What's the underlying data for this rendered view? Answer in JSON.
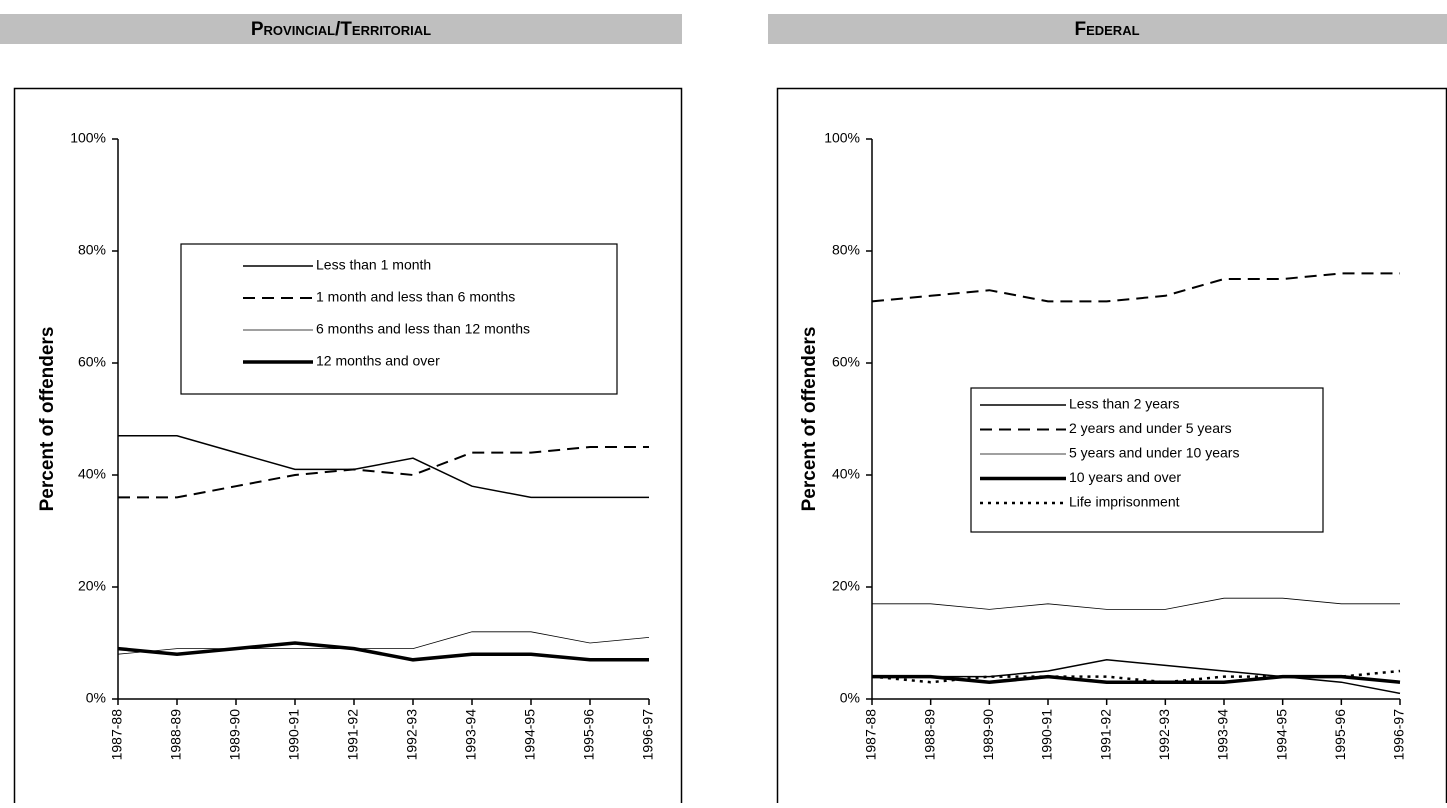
{
  "chart_data": [
    {
      "type": "line",
      "title": "Provincial/Territorial",
      "y_label": "Percent of offenders",
      "categories": [
        "1987-88",
        "1988-89",
        "1989-90",
        "1990-91",
        "1991-92",
        "1992-93",
        "1993-94",
        "1994-95",
        "1995-96",
        "1996-97"
      ],
      "ylim": [
        0,
        100
      ],
      "yticks": [
        {
          "value": 0,
          "label": "0%"
        },
        {
          "value": 20,
          "label": "20%"
        },
        {
          "value": 40,
          "label": "40%"
        },
        {
          "value": 60,
          "label": "60%"
        },
        {
          "value": 80,
          "label": "80%"
        },
        {
          "value": 100,
          "label": "100%"
        }
      ],
      "series": [
        {
          "name": "Less than 1 month",
          "color": "#000000",
          "style": "solid",
          "width": 1.5,
          "values": [
            47,
            47,
            44,
            41,
            41,
            43,
            38,
            36,
            36,
            36
          ]
        },
        {
          "name": "1 month and less than 6 months",
          "color": "#000000",
          "style": "dashed",
          "width": 2,
          "values": [
            36,
            36,
            38,
            40,
            41,
            40,
            44,
            44,
            45,
            45
          ]
        },
        {
          "name": "6 months and less than 12 months",
          "color": "#000000",
          "style": "solid",
          "width": 0.8,
          "values": [
            8,
            9,
            9,
            9,
            9,
            9,
            12,
            12,
            10,
            11
          ]
        },
        {
          "name": "12 months and over",
          "color": "#000000",
          "style": "solid",
          "width": 3.5,
          "values": [
            9,
            8,
            9,
            10,
            9,
            7,
            8,
            8,
            7,
            7
          ]
        }
      ]
    },
    {
      "type": "line",
      "title": "Federal",
      "y_label": "Percent of offenders",
      "categories": [
        "1987-88",
        "1988-89",
        "1989-90",
        "1990-91",
        "1991-92",
        "1992-93",
        "1993-94",
        "1994-95",
        "1995-96",
        "1996-97"
      ],
      "ylim": [
        0,
        100
      ],
      "yticks": [
        {
          "value": 0,
          "label": "0%"
        },
        {
          "value": 20,
          "label": "20%"
        },
        {
          "value": 40,
          "label": "40%"
        },
        {
          "value": 60,
          "label": "60%"
        },
        {
          "value": 80,
          "label": "80%"
        },
        {
          "value": 100,
          "label": "100%"
        }
      ],
      "series": [
        {
          "name": "Less than 2 years",
          "color": "#000000",
          "style": "solid",
          "width": 1.5,
          "values": [
            4,
            4,
            4,
            5,
            7,
            6,
            5,
            4,
            3,
            1
          ]
        },
        {
          "name": "2 years and under 5 years",
          "color": "#000000",
          "style": "dashed",
          "width": 2,
          "values": [
            71,
            72,
            73,
            71,
            71,
            72,
            75,
            75,
            76,
            76
          ]
        },
        {
          "name": "5 years and under 10 years",
          "color": "#000000",
          "style": "solid",
          "width": 0.8,
          "values": [
            17,
            17,
            16,
            17,
            16,
            16,
            18,
            18,
            17,
            17
          ]
        },
        {
          "name": "10 years and over",
          "color": "#000000",
          "style": "solid",
          "width": 3.5,
          "values": [
            4,
            4,
            3,
            4,
            3,
            3,
            3,
            4,
            4,
            3
          ]
        },
        {
          "name": "Life imprisonment",
          "color": "#000000",
          "style": "dotted",
          "width": 2.5,
          "values": [
            4,
            3,
            4,
            4,
            4,
            3,
            4,
            4,
            4,
            5
          ]
        }
      ]
    }
  ]
}
